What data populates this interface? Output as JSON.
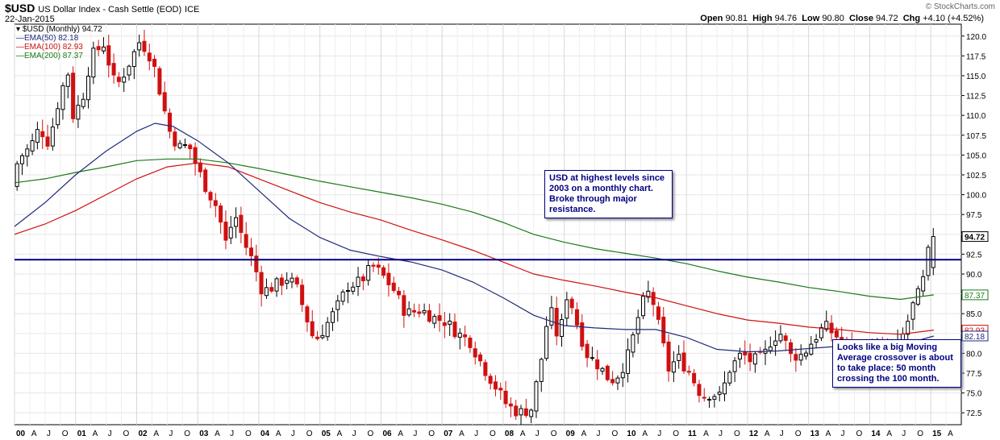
{
  "header": {
    "symbol": "$USD",
    "name": "US Dollar Index - Cash Settle (EOD)",
    "exchange": "ICE",
    "date": "22-Jan-2015",
    "brand": "© StockCharts.com",
    "open_label": "Open",
    "open": "90.81",
    "high_label": "High",
    "high": "94.76",
    "low_label": "Low",
    "low": "90.80",
    "close_label": "Close",
    "close": "94.72",
    "chg_label": "Chg",
    "chg": "+4.10 (+4.52%)"
  },
  "legend": {
    "main": "$USD (Monthly) 94.72",
    "items": [
      {
        "label": "EMA(50) 82.18",
        "color": "#1f2a7a"
      },
      {
        "label": "EMA(100) 82.93",
        "color": "#d01010"
      },
      {
        "label": "EMA(200) 87.37",
        "color": "#1a7a1a"
      }
    ]
  },
  "annotations": [
    {
      "text": "USD at highest levels since 2003 on a monthly chart. Broke through major resistance."
    },
    {
      "text": "Looks like a big Moving Average crossover is about to take place: 50 month crossing the 100 month."
    }
  ],
  "chart_data": {
    "type": "candlestick",
    "ylim": [
      71.0,
      121.5
    ],
    "yticks": [
      "72.5",
      "75.0",
      "77.5",
      "80.0",
      "82.5",
      "85.0",
      "87.5",
      "90.0",
      "92.5",
      "95.0",
      "97.5",
      "100.0",
      "102.5",
      "105.0",
      "107.5",
      "110.0",
      "112.5",
      "115.0",
      "117.5",
      "120.0"
    ],
    "xlim": [
      2000.0,
      2015.5
    ],
    "xticks": [
      "00",
      "A",
      "J",
      "O",
      "01",
      "A",
      "J",
      "O",
      "02",
      "A",
      "J",
      "O",
      "03",
      "A",
      "J",
      "O",
      "04",
      "A",
      "J",
      "O",
      "05",
      "A",
      "J",
      "O",
      "06",
      "A",
      "J",
      "O",
      "07",
      "A",
      "J",
      "O",
      "08",
      "A",
      "J",
      "O",
      "09",
      "A",
      "J",
      "O",
      "10",
      "A",
      "J",
      "O",
      "11",
      "A",
      "J",
      "O",
      "12",
      "A",
      "J",
      "O",
      "13",
      "A",
      "J",
      "O",
      "14",
      "A",
      "J",
      "O",
      "15",
      "A"
    ],
    "resistance": 91.8,
    "price_labels": [
      {
        "label": "94.72",
        "value": 94.72,
        "color": "#000000",
        "bg": "#ffffff",
        "bold": true
      },
      {
        "label": "87.37",
        "value": 87.37,
        "color": "#1a7a1a",
        "bg": "#ffffff",
        "bold": false
      },
      {
        "label": "82.93",
        "value": 82.93,
        "color": "#d01010",
        "bg": "#ffffff",
        "bold": false
      },
      {
        "label": "82.18",
        "value": 82.18,
        "color": "#1f2a7a",
        "bg": "#ffffff",
        "bold": false
      }
    ],
    "price_anchors": [
      [
        2000.0,
        101.0
      ],
      [
        2000.1,
        104.5
      ],
      [
        2000.3,
        106.0
      ],
      [
        2000.45,
        108.5
      ],
      [
        2000.6,
        106.5
      ],
      [
        2000.8,
        113.0
      ],
      [
        2000.95,
        116.0
      ],
      [
        2001.0,
        110.0
      ],
      [
        2001.15,
        112.0
      ],
      [
        2001.3,
        117.5
      ],
      [
        2001.5,
        119.0
      ],
      [
        2001.7,
        113.5
      ],
      [
        2001.85,
        115.5
      ],
      [
        2002.1,
        119.5
      ],
      [
        2002.3,
        117.0
      ],
      [
        2002.5,
        110.5
      ],
      [
        2002.6,
        107.5
      ],
      [
        2002.75,
        106.0
      ],
      [
        2002.9,
        106.2
      ],
      [
        2003.0,
        104.0
      ],
      [
        2003.2,
        100.5
      ],
      [
        2003.35,
        98.5
      ],
      [
        2003.5,
        94.0
      ],
      [
        2003.65,
        97.5
      ],
      [
        2003.8,
        94.0
      ],
      [
        2003.95,
        91.5
      ],
      [
        2004.1,
        87.8
      ],
      [
        2004.3,
        88.5
      ],
      [
        2004.5,
        89.5
      ],
      [
        2004.65,
        88.5
      ],
      [
        2004.8,
        85.0
      ],
      [
        2004.95,
        81.5
      ],
      [
        2005.1,
        83.0
      ],
      [
        2005.3,
        85.5
      ],
      [
        2005.5,
        88.5
      ],
      [
        2005.7,
        89.0
      ],
      [
        2005.9,
        91.0
      ],
      [
        2006.05,
        90.0
      ],
      [
        2006.25,
        88.0
      ],
      [
        2006.45,
        85.0
      ],
      [
        2006.7,
        85.5
      ],
      [
        2006.9,
        84.5
      ],
      [
        2007.1,
        84.0
      ],
      [
        2007.3,
        82.5
      ],
      [
        2007.5,
        81.5
      ],
      [
        2007.7,
        78.5
      ],
      [
        2007.9,
        76.0
      ],
      [
        2008.1,
        73.5
      ],
      [
        2008.3,
        72.5
      ],
      [
        2008.5,
        73.0
      ],
      [
        2008.65,
        78.5
      ],
      [
        2008.8,
        86.0
      ],
      [
        2008.95,
        81.5
      ],
      [
        2009.1,
        88.0
      ],
      [
        2009.2,
        85.0
      ],
      [
        2009.4,
        80.0
      ],
      [
        2009.6,
        78.5
      ],
      [
        2009.8,
        76.5
      ],
      [
        2009.95,
        77.5
      ],
      [
        2010.1,
        80.0
      ],
      [
        2010.3,
        86.0
      ],
      [
        2010.45,
        88.0
      ],
      [
        2010.6,
        83.0
      ],
      [
        2010.75,
        78.0
      ],
      [
        2010.9,
        79.5
      ],
      [
        2011.1,
        77.5
      ],
      [
        2011.3,
        74.5
      ],
      [
        2011.45,
        75.0
      ],
      [
        2011.6,
        74.5
      ],
      [
        2011.75,
        78.0
      ],
      [
        2011.95,
        80.0
      ],
      [
        2012.1,
        79.0
      ],
      [
        2012.3,
        79.5
      ],
      [
        2012.45,
        82.0
      ],
      [
        2012.6,
        82.5
      ],
      [
        2012.75,
        79.7
      ],
      [
        2012.95,
        79.8
      ],
      [
        2013.1,
        81.5
      ],
      [
        2013.3,
        83.5
      ],
      [
        2013.45,
        82.5
      ],
      [
        2013.6,
        81.5
      ],
      [
        2013.75,
        80.0
      ],
      [
        2013.95,
        80.2
      ],
      [
        2014.1,
        80.5
      ],
      [
        2014.3,
        80.0
      ],
      [
        2014.45,
        80.2
      ],
      [
        2014.6,
        82.5
      ],
      [
        2014.75,
        86.0
      ],
      [
        2014.9,
        88.5
      ],
      [
        2015.05,
        94.72
      ]
    ],
    "ema50": [
      [
        2000.0,
        96.0
      ],
      [
        2000.5,
        99.0
      ],
      [
        2001.0,
        102.5
      ],
      [
        2001.5,
        105.5
      ],
      [
        2002.0,
        108.0
      ],
      [
        2002.3,
        109.0
      ],
      [
        2002.6,
        108.6
      ],
      [
        2003.0,
        106.8
      ],
      [
        2003.5,
        104.0
      ],
      [
        2004.0,
        100.5
      ],
      [
        2004.5,
        97.0
      ],
      [
        2005.0,
        94.6
      ],
      [
        2005.5,
        93.0
      ],
      [
        2006.0,
        92.2
      ],
      [
        2006.5,
        91.5
      ],
      [
        2007.0,
        90.5
      ],
      [
        2007.5,
        89.0
      ],
      [
        2008.0,
        87.0
      ],
      [
        2008.5,
        84.8
      ],
      [
        2008.8,
        84.0
      ],
      [
        2009.0,
        83.5
      ],
      [
        2009.5,
        83.2
      ],
      [
        2010.0,
        83.0
      ],
      [
        2010.5,
        83.0
      ],
      [
        2011.0,
        82.0
      ],
      [
        2011.5,
        80.5
      ],
      [
        2012.0,
        80.2
      ],
      [
        2012.5,
        80.3
      ],
      [
        2013.0,
        80.6
      ],
      [
        2013.5,
        80.9
      ],
      [
        2014.0,
        81.0
      ],
      [
        2014.5,
        81.0
      ],
      [
        2015.05,
        82.18
      ]
    ],
    "ema100": [
      [
        2000.0,
        95.0
      ],
      [
        2000.5,
        96.3
      ],
      [
        2001.0,
        98.0
      ],
      [
        2001.5,
        100.0
      ],
      [
        2002.0,
        102.0
      ],
      [
        2002.5,
        103.5
      ],
      [
        2003.0,
        104.0
      ],
      [
        2003.5,
        103.5
      ],
      [
        2004.0,
        102.0
      ],
      [
        2004.5,
        100.5
      ],
      [
        2005.0,
        99.0
      ],
      [
        2005.5,
        97.8
      ],
      [
        2006.0,
        96.8
      ],
      [
        2006.5,
        95.5
      ],
      [
        2007.0,
        94.3
      ],
      [
        2007.5,
        93.0
      ],
      [
        2008.0,
        91.5
      ],
      [
        2008.5,
        90.0
      ],
      [
        2009.0,
        89.2
      ],
      [
        2009.5,
        88.5
      ],
      [
        2010.0,
        87.7
      ],
      [
        2010.5,
        87.0
      ],
      [
        2011.0,
        86.0
      ],
      [
        2011.5,
        85.0
      ],
      [
        2012.0,
        84.2
      ],
      [
        2012.5,
        83.8
      ],
      [
        2013.0,
        83.3
      ],
      [
        2013.5,
        83.0
      ],
      [
        2014.0,
        82.6
      ],
      [
        2014.5,
        82.4
      ],
      [
        2015.05,
        82.93
      ]
    ],
    "ema200": [
      [
        2000.0,
        101.5
      ],
      [
        2000.5,
        102.0
      ],
      [
        2001.0,
        102.8
      ],
      [
        2001.5,
        103.5
      ],
      [
        2002.0,
        104.3
      ],
      [
        2002.5,
        104.5
      ],
      [
        2003.0,
        104.5
      ],
      [
        2003.5,
        104.0
      ],
      [
        2004.0,
        103.3
      ],
      [
        2004.5,
        102.5
      ],
      [
        2005.0,
        101.7
      ],
      [
        2005.5,
        101.0
      ],
      [
        2006.0,
        100.3
      ],
      [
        2006.5,
        99.6
      ],
      [
        2007.0,
        98.8
      ],
      [
        2007.5,
        97.8
      ],
      [
        2008.0,
        96.5
      ],
      [
        2008.5,
        95.0
      ],
      [
        2009.0,
        94.0
      ],
      [
        2009.5,
        93.2
      ],
      [
        2010.0,
        92.6
      ],
      [
        2010.5,
        92.0
      ],
      [
        2011.0,
        91.3
      ],
      [
        2011.5,
        90.4
      ],
      [
        2012.0,
        89.6
      ],
      [
        2012.5,
        89.0
      ],
      [
        2013.0,
        88.3
      ],
      [
        2013.5,
        87.8
      ],
      [
        2014.0,
        87.2
      ],
      [
        2014.5,
        86.8
      ],
      [
        2015.05,
        87.37
      ]
    ]
  }
}
